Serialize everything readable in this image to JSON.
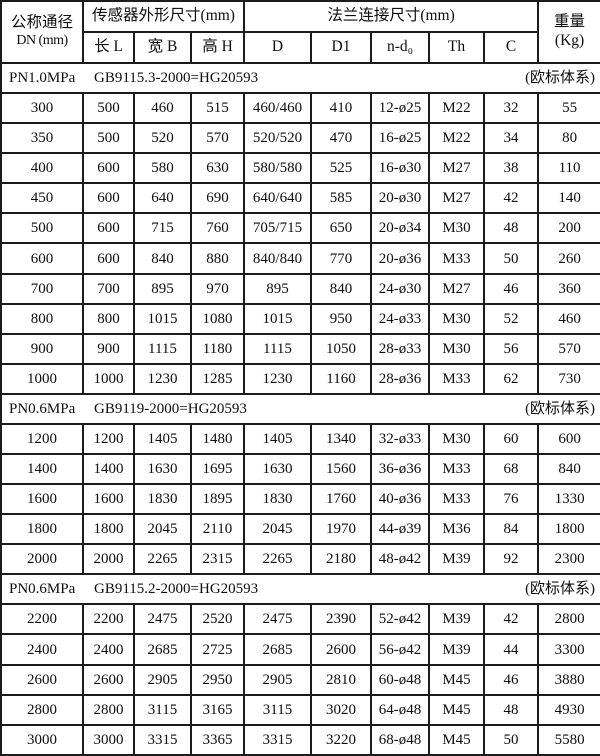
{
  "header": {
    "dn_title": "公称通径",
    "dn_unit": "DN (mm)",
    "sensor_group": "传感器外形尺寸(mm)",
    "flange_group": "法兰连接尺寸(mm)",
    "weight_title": "重量",
    "weight_unit": "(Kg)",
    "sensor_cols": [
      "长 L",
      "宽 B",
      "高 H"
    ],
    "flange_cols": [
      "D",
      "D1",
      "n-d₀",
      "Th",
      "C"
    ]
  },
  "chart_data": {
    "type": "table",
    "column_groups": [
      {
        "label": "公称通径 DN (mm)",
        "span": 1
      },
      {
        "label": "传感器外形尺寸(mm)",
        "span": 3
      },
      {
        "label": "法兰连接尺寸(mm)",
        "span": 5
      },
      {
        "label": "重量 (Kg)",
        "span": 1
      }
    ],
    "columns": [
      "公称通径 DN (mm)",
      "长 L",
      "宽 B",
      "高 H",
      "D",
      "D1",
      "n-d₀",
      "Th",
      "C",
      "重量 (Kg)"
    ],
    "sections": [
      {
        "pressure": "PN1.0MPa",
        "standard": "GB9115.3-2000=HG20593",
        "system": "(欧标体系)",
        "rows": [
          [
            "300",
            "500",
            "460",
            "515",
            "460/460",
            "410",
            "12-ø25",
            "M22",
            "32",
            "55"
          ],
          [
            "350",
            "500",
            "520",
            "570",
            "520/520",
            "470",
            "16-ø25",
            "M22",
            "34",
            "80"
          ],
          [
            "400",
            "600",
            "580",
            "630",
            "580/580",
            "525",
            "16-ø30",
            "M27",
            "38",
            "110"
          ],
          [
            "450",
            "600",
            "640",
            "690",
            "640/640",
            "585",
            "20-ø30",
            "M27",
            "42",
            "140"
          ],
          [
            "500",
            "600",
            "715",
            "760",
            "705/715",
            "650",
            "20-ø34",
            "M30",
            "48",
            "200"
          ],
          [
            "600",
            "600",
            "840",
            "880",
            "840/840",
            "770",
            "20-ø36",
            "M33",
            "50",
            "260"
          ],
          [
            "700",
            "700",
            "895",
            "970",
            "895",
            "840",
            "24-ø30",
            "M27",
            "46",
            "360"
          ],
          [
            "800",
            "800",
            "1015",
            "1080",
            "1015",
            "950",
            "24-ø33",
            "M30",
            "52",
            "460"
          ],
          [
            "900",
            "900",
            "1115",
            "1180",
            "1115",
            "1050",
            "28-ø33",
            "M30",
            "56",
            "570"
          ],
          [
            "1000",
            "1000",
            "1230",
            "1285",
            "1230",
            "1160",
            "28-ø36",
            "M33",
            "62",
            "730"
          ]
        ]
      },
      {
        "pressure": "PN0.6MPa",
        "standard": "GB9119-2000=HG20593",
        "system": "(欧标体系)",
        "rows": [
          [
            "1200",
            "1200",
            "1405",
            "1480",
            "1405",
            "1340",
            "32-ø33",
            "M30",
            "60",
            "600"
          ],
          [
            "1400",
            "1400",
            "1630",
            "1695",
            "1630",
            "1560",
            "36-ø36",
            "M33",
            "68",
            "840"
          ],
          [
            "1600",
            "1600",
            "1830",
            "1895",
            "1830",
            "1760",
            "40-ø36",
            "M33",
            "76",
            "1330"
          ],
          [
            "1800",
            "1800",
            "2045",
            "2110",
            "2045",
            "1970",
            "44-ø39",
            "M36",
            "84",
            "1800"
          ],
          [
            "2000",
            "2000",
            "2265",
            "2315",
            "2265",
            "2180",
            "48-ø42",
            "M39",
            "92",
            "2300"
          ]
        ]
      },
      {
        "pressure": "PN0.6MPa",
        "standard": "GB9115.2-2000=HG20593",
        "system": "(欧标体系)",
        "rows": [
          [
            "2200",
            "2200",
            "2475",
            "2520",
            "2475",
            "2390",
            "52-ø42",
            "M39",
            "42",
            "2800"
          ],
          [
            "2400",
            "2400",
            "2685",
            "2725",
            "2685",
            "2600",
            "56-ø42",
            "M39",
            "44",
            "3300"
          ],
          [
            "2600",
            "2600",
            "2905",
            "2950",
            "2905",
            "2810",
            "60-ø48",
            "M45",
            "46",
            "3880"
          ],
          [
            "2800",
            "2800",
            "3115",
            "3165",
            "3115",
            "3020",
            "64-ø48",
            "M45",
            "48",
            "4930"
          ],
          [
            "3000",
            "3000",
            "3315",
            "3365",
            "3315",
            "3220",
            "68-ø48",
            "M45",
            "50",
            "5580"
          ]
        ]
      }
    ]
  }
}
